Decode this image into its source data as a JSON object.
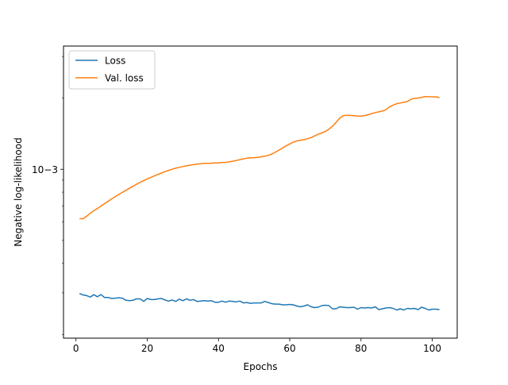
{
  "chart_data": {
    "type": "line",
    "title": "",
    "xlabel": "Epochs",
    "ylabel": "Negative log-likelihood",
    "xlim": [
      -3.5,
      107.0
    ],
    "ylim": [
      0.000193,
      0.00332
    ],
    "yscale": "log",
    "grid": false,
    "legend_position": "top-left",
    "x_ticks": [
      0,
      20,
      40,
      60,
      80,
      100
    ],
    "y_ticks": [
      {
        "value": 0.001,
        "label": "10−3"
      }
    ],
    "series": [
      {
        "name": "Loss",
        "color": "#1f77b4",
        "x": [
          1,
          2,
          3,
          4,
          5,
          6,
          7,
          8,
          9,
          10,
          11,
          12,
          13,
          14,
          15,
          16,
          17,
          18,
          19,
          20,
          21,
          22,
          23,
          24,
          25,
          26,
          27,
          28,
          29,
          30,
          31,
          32,
          33,
          34,
          35,
          36,
          37,
          38,
          39,
          40,
          41,
          42,
          43,
          44,
          45,
          46,
          47,
          48,
          49,
          50,
          51,
          52,
          53,
          54,
          55,
          56,
          57,
          58,
          59,
          60,
          61,
          62,
          63,
          64,
          65,
          66,
          67,
          68,
          69,
          70,
          71,
          72,
          73,
          74,
          75,
          76,
          77,
          78,
          79,
          80,
          81,
          82,
          83,
          84,
          85,
          86,
          87,
          88,
          89,
          90,
          91,
          92,
          93,
          94,
          95,
          96,
          97,
          98,
          99,
          100,
          101,
          102
        ],
        "values": [
          0.000298,
          0.000294,
          0.000292,
          0.000288,
          0.000295,
          0.000289,
          0.000295,
          0.000287,
          0.000287,
          0.000284,
          0.000285,
          0.000286,
          0.000285,
          0.000279,
          0.000278,
          0.000279,
          0.000283,
          0.000283,
          0.000276,
          0.000284,
          0.000281,
          0.000281,
          0.000283,
          0.000284,
          0.00028,
          0.000277,
          0.00028,
          0.000276,
          0.000282,
          0.000278,
          0.000283,
          0.000279,
          0.000281,
          0.000276,
          0.000277,
          0.000278,
          0.000277,
          0.000278,
          0.000274,
          0.000274,
          0.000277,
          0.000274,
          0.000277,
          0.000276,
          0.000275,
          0.000277,
          0.000272,
          0.000273,
          0.000271,
          0.000272,
          0.000272,
          0.000272,
          0.000276,
          0.000273,
          0.00027,
          0.000269,
          0.000269,
          0.000267,
          0.000267,
          0.000268,
          0.000267,
          0.000264,
          0.000262,
          0.000264,
          0.000267,
          0.000262,
          0.00026,
          0.000261,
          0.000265,
          0.000266,
          0.000265,
          0.000257,
          0.000257,
          0.000262,
          0.000261,
          0.00026,
          0.00026,
          0.000261,
          0.000256,
          0.00026,
          0.000259,
          0.00026,
          0.000259,
          0.000262,
          0.000255,
          0.000257,
          0.000259,
          0.00026,
          0.000258,
          0.000254,
          0.000257,
          0.000254,
          0.000258,
          0.000257,
          0.000258,
          0.000255,
          0.000261,
          0.000258,
          0.000254,
          0.000256,
          0.000256,
          0.000255
        ]
      },
      {
        "name": "Val. loss",
        "color": "#ff7f0e",
        "x": [
          1,
          2,
          3,
          4,
          5,
          6,
          7,
          8,
          9,
          10,
          11,
          12,
          13,
          14,
          15,
          16,
          17,
          18,
          19,
          20,
          21,
          22,
          23,
          24,
          25,
          26,
          27,
          28,
          29,
          30,
          31,
          32,
          33,
          34,
          35,
          36,
          37,
          38,
          39,
          40,
          41,
          42,
          43,
          44,
          45,
          46,
          47,
          48,
          49,
          50,
          51,
          52,
          53,
          54,
          55,
          56,
          57,
          58,
          59,
          60,
          61,
          62,
          63,
          64,
          65,
          66,
          67,
          68,
          69,
          70,
          71,
          72,
          73,
          74,
          75,
          76,
          77,
          78,
          79,
          80,
          81,
          82,
          83,
          84,
          85,
          86,
          87,
          88,
          89,
          90,
          91,
          92,
          93,
          94,
          95,
          96,
          97,
          98,
          99,
          100,
          101,
          102
        ],
        "values": [
          0.000618,
          0.000618,
          0.000633,
          0.000651,
          0.000668,
          0.000682,
          0.000698,
          0.000715,
          0.000732,
          0.000749,
          0.000765,
          0.000782,
          0.000798,
          0.000814,
          0.000831,
          0.000847,
          0.000864,
          0.00088,
          0.000895,
          0.00091,
          0.000924,
          0.000937,
          0.000951,
          0.000964,
          0.000977,
          0.000989,
          0.001,
          0.00101,
          0.001019,
          0.001027,
          0.001034,
          0.00104,
          0.001046,
          0.001051,
          0.001055,
          0.001059,
          0.00106,
          0.001061,
          0.001063,
          0.001064,
          0.001067,
          0.00107,
          0.001075,
          0.001081,
          0.001089,
          0.001098,
          0.001107,
          0.001114,
          0.001118,
          0.001119,
          0.001122,
          0.001128,
          0.001135,
          0.001145,
          0.00116,
          0.001182,
          0.001206,
          0.001231,
          0.001256,
          0.00128,
          0.001302,
          0.001318,
          0.001327,
          0.001334,
          0.001346,
          0.001362,
          0.001384,
          0.001406,
          0.001424,
          0.001445,
          0.001478,
          0.001521,
          0.001578,
          0.001644,
          0.001684,
          0.001691,
          0.001689,
          0.001685,
          0.001679,
          0.001677,
          0.001687,
          0.001701,
          0.001719,
          0.001737,
          0.001751,
          0.001762,
          0.001785,
          0.001837,
          0.001868,
          0.001892,
          0.001906,
          0.001919,
          0.001935,
          0.001976,
          0.001995,
          0.002001,
          0.002014,
          0.00203,
          0.002026,
          0.002024,
          0.002024,
          0.002009
        ]
      }
    ]
  }
}
